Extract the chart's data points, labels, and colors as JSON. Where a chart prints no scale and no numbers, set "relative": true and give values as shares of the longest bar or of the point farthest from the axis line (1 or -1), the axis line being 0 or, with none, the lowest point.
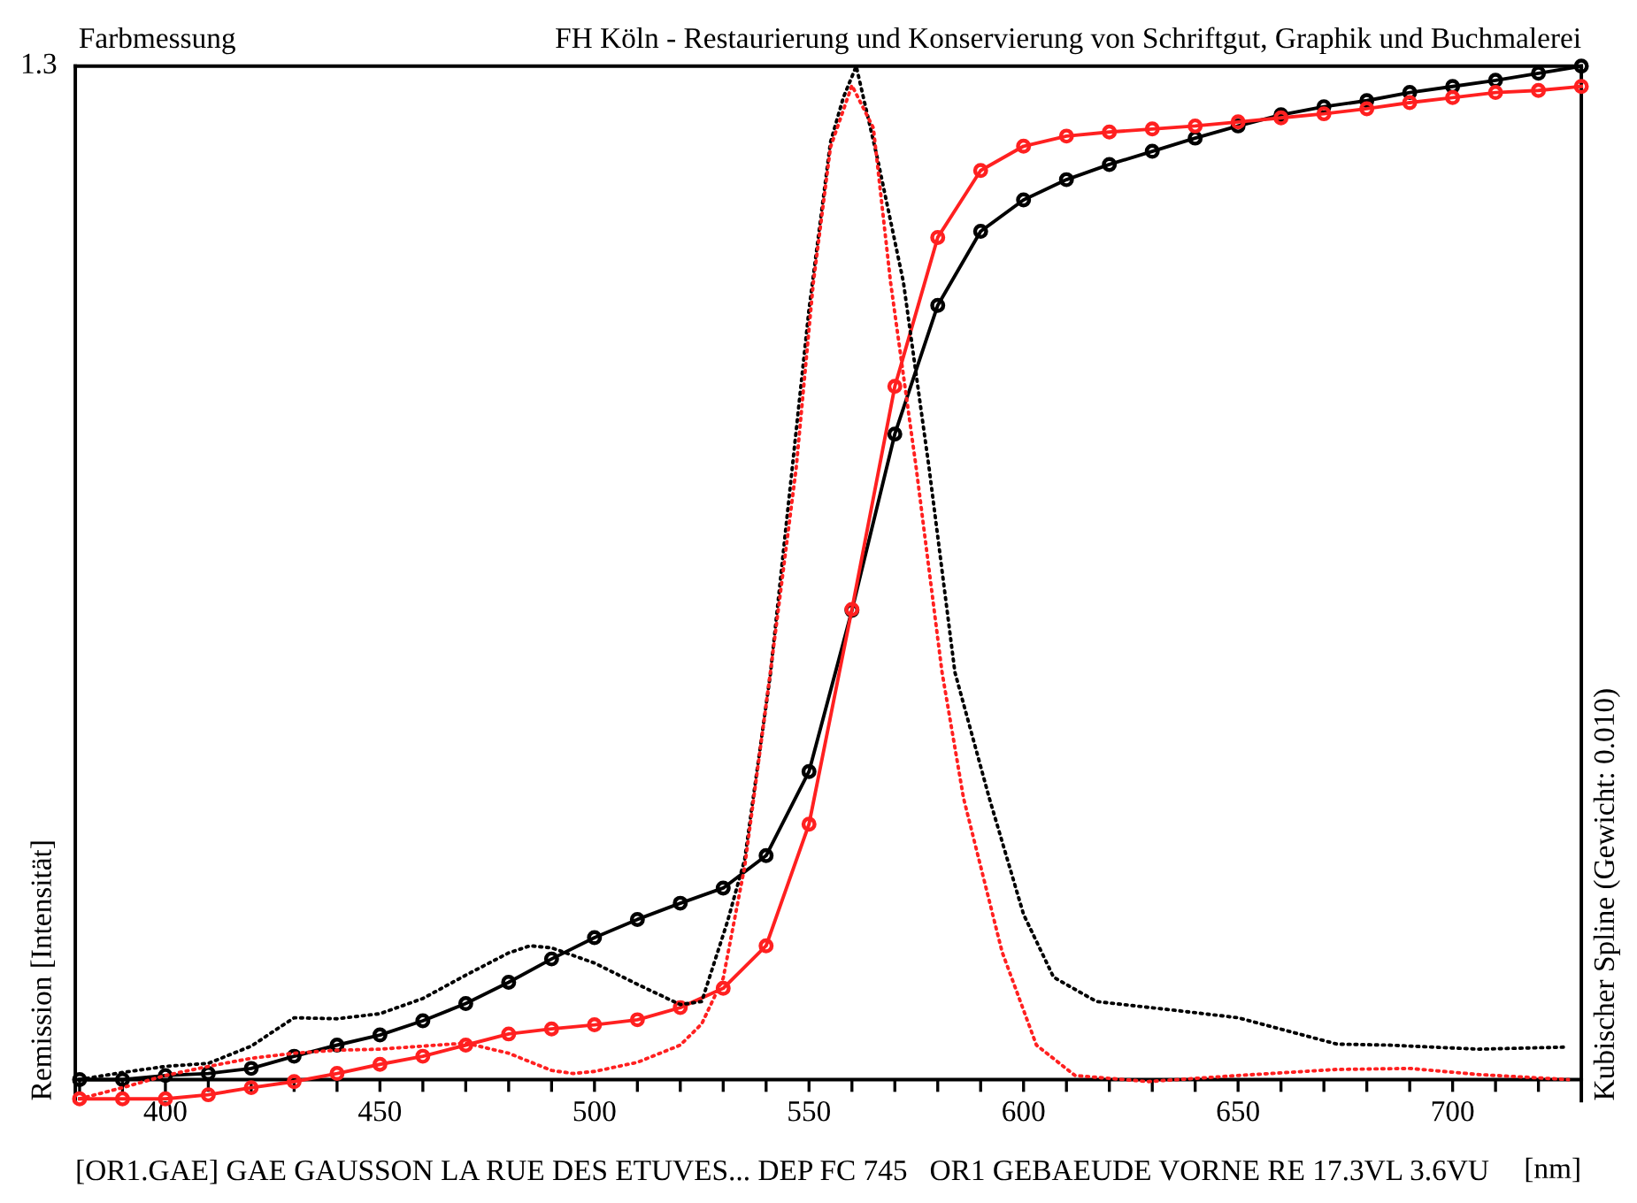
{
  "chart_data": {
    "type": "line",
    "title": "Farbmessung",
    "subtitle": "FH Köln - Restaurierung und Konservierung von Schriftgut, Graphik und Buchmalerei",
    "xlabel": "[nm]",
    "ylabel": "Remission [Intensität]",
    "y2label": "Kubischer Spline (Gewicht: 0.010)",
    "annotations": [
      "1.3",
      "[OR1.GAE] GAE GAUSSON LA RUE DES ETUVES... DEP FC 745   OR1 GEBAEUDE VORNE RE 17.3VL 3.6VU"
    ],
    "relative": true,
    "xlim": [
      379,
      730
    ],
    "xticks": [
      {
        "value": 380,
        "label": null
      },
      {
        "value": 390,
        "label": null
      },
      400,
      {
        "value": 410,
        "label": null
      },
      {
        "value": 420,
        "label": null
      },
      {
        "value": 430,
        "label": null
      },
      {
        "value": 440,
        "label": null
      },
      450,
      {
        "value": 460,
        "label": null
      },
      {
        "value": 470,
        "label": null
      },
      {
        "value": 480,
        "label": null
      },
      {
        "value": 490,
        "label": null
      },
      500,
      {
        "value": 510,
        "label": null
      },
      {
        "value": 520,
        "label": null
      },
      {
        "value": 530,
        "label": null
      },
      {
        "value": 540,
        "label": null
      },
      550,
      {
        "value": 560,
        "label": null
      },
      {
        "value": 570,
        "label": null
      },
      {
        "value": 580,
        "label": null
      },
      {
        "value": 590,
        "label": null
      },
      600,
      {
        "value": 610,
        "label": null
      },
      {
        "value": 620,
        "label": null
      },
      {
        "value": 630,
        "label": null
      },
      {
        "value": 640,
        "label": null
      },
      650,
      {
        "value": 660,
        "label": null
      },
      {
        "value": 670,
        "label": null
      },
      {
        "value": 680,
        "label": null
      },
      {
        "value": 690,
        "label": null
      },
      700,
      {
        "value": 710,
        "label": null
      },
      {
        "value": 720,
        "label": null
      }
    ],
    "grid": false,
    "legend": false,
    "series": [
      {
        "color": "#000000",
        "marker": "circle",
        "line_style": "solid",
        "x": [
          380,
          390,
          400,
          410,
          420,
          430,
          440,
          450,
          460,
          470,
          480,
          490,
          500,
          510,
          520,
          530,
          540,
          550,
          560,
          570,
          580,
          590,
          600,
          610,
          620,
          630,
          640,
          650,
          660,
          670,
          680,
          690,
          700,
          710,
          720,
          730
        ],
        "values": [
          0.0,
          0.0,
          0.004,
          0.006,
          0.011,
          0.023,
          0.034,
          0.044,
          0.058,
          0.075,
          0.096,
          0.119,
          0.14,
          0.158,
          0.174,
          0.189,
          0.221,
          0.304,
          0.463,
          0.637,
          0.764,
          0.837,
          0.868,
          0.888,
          0.903,
          0.916,
          0.929,
          0.941,
          0.952,
          0.96,
          0.966,
          0.974,
          0.98,
          0.986,
          0.993,
          1.0
        ]
      },
      {
        "color": "#ff2020",
        "marker": "circle",
        "line_style": "solid",
        "x": [
          380,
          390,
          400,
          410,
          420,
          430,
          440,
          450,
          460,
          470,
          480,
          490,
          500,
          510,
          520,
          530,
          540,
          550,
          560,
          570,
          580,
          590,
          600,
          610,
          620,
          630,
          640,
          650,
          660,
          670,
          680,
          690,
          700,
          710,
          720,
          730
        ],
        "values": [
          -0.019,
          -0.019,
          -0.019,
          -0.015,
          -0.008,
          -0.002,
          0.006,
          0.015,
          0.023,
          0.034,
          0.045,
          0.05,
          0.054,
          0.059,
          0.071,
          0.09,
          0.132,
          0.252,
          0.464,
          0.684,
          0.831,
          0.897,
          0.921,
          0.931,
          0.935,
          0.938,
          0.941,
          0.945,
          0.949,
          0.953,
          0.958,
          0.964,
          0.969,
          0.974,
          0.976,
          0.98
        ]
      },
      {
        "color": "#000000",
        "marker": "none",
        "line_style": "dotted",
        "x": [
          380,
          390,
          400,
          410,
          420,
          430,
          440,
          450,
          460,
          470,
          480,
          485,
          490,
          500,
          510,
          520,
          525,
          531,
          535,
          541,
          550,
          555,
          558,
          561,
          566,
          572,
          578,
          584,
          592,
          600,
          607,
          617,
          636,
          650,
          673,
          685,
          706,
          726
        ],
        "values": [
          0.0,
          0.007,
          0.013,
          0.016,
          0.033,
          0.061,
          0.06,
          0.065,
          0.08,
          0.103,
          0.125,
          0.132,
          0.13,
          0.115,
          0.094,
          0.074,
          0.077,
          0.156,
          0.217,
          0.4,
          0.76,
          0.925,
          0.969,
          1.0,
          0.908,
          0.787,
          0.603,
          0.402,
          0.278,
          0.163,
          0.101,
          0.077,
          0.068,
          0.061,
          0.035,
          0.034,
          0.03,
          0.032
        ]
      },
      {
        "color": "#ff2020",
        "marker": "none",
        "line_style": "dotted",
        "x": [
          380,
          390,
          400,
          410,
          420,
          430,
          440,
          450,
          460,
          470,
          480,
          490,
          495,
          500,
          510,
          520,
          525,
          530,
          535,
          541,
          547,
          551,
          555,
          560,
          565,
          569,
          575,
          581,
          586,
          595,
          603,
          612,
          629,
          650,
          673,
          690,
          706,
          727
        ],
        "values": [
          -0.019,
          -0.008,
          0.004,
          0.013,
          0.021,
          0.026,
          0.029,
          0.03,
          0.033,
          0.036,
          0.026,
          0.009,
          0.006,
          0.008,
          0.017,
          0.034,
          0.055,
          0.1,
          0.21,
          0.402,
          0.603,
          0.786,
          0.92,
          0.981,
          0.939,
          0.787,
          0.603,
          0.402,
          0.278,
          0.126,
          0.034,
          0.004,
          -0.002,
          0.004,
          0.01,
          0.011,
          0.005,
          0.0
        ]
      }
    ]
  }
}
